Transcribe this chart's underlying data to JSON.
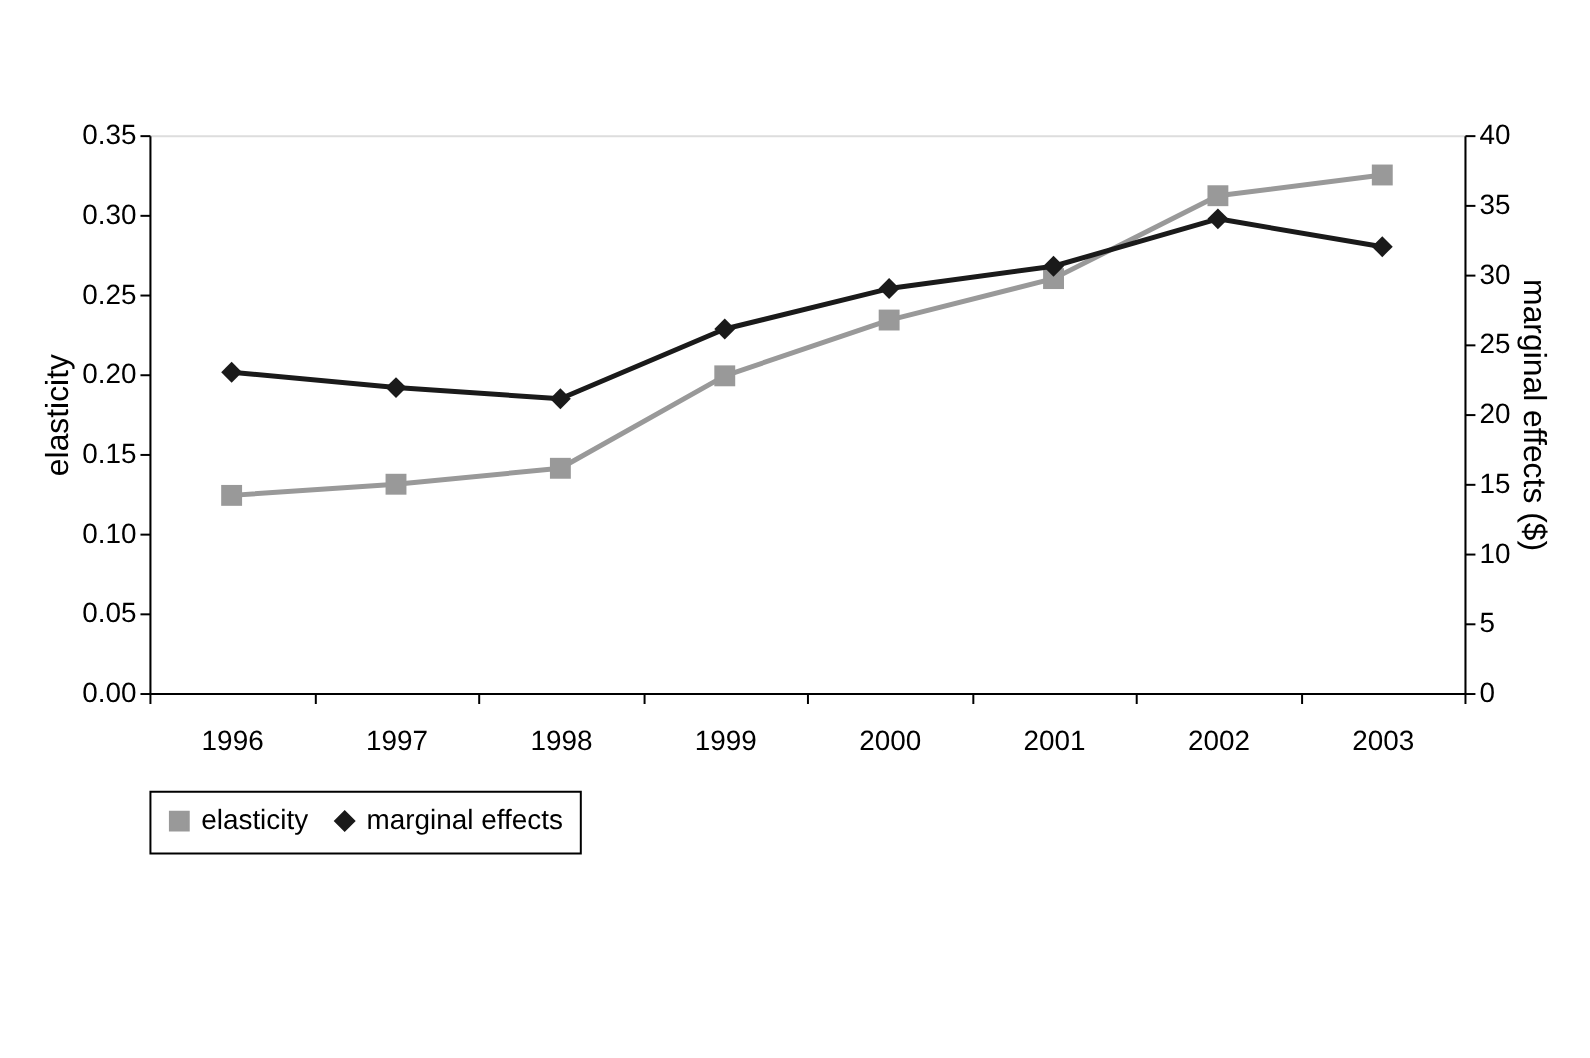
{
  "chart_data": {
    "type": "line",
    "ylabel": "elasticity",
    "y2label": "marginal effects ($)",
    "categories": [
      "1996",
      "1997",
      "1998",
      "1999",
      "2000",
      "2001",
      "2002",
      "2003"
    ],
    "series": [
      {
        "name": "elasticity",
        "color": "#999999",
        "marker": "square",
        "values": [
          0.124,
          0.131,
          0.141,
          0.199,
          0.234,
          0.26,
          0.312,
          0.325
        ]
      },
      {
        "name": "marginal effects",
        "color": "#1a1a1a",
        "marker": "diamond",
        "axis": "y2",
        "values": [
          23.0,
          21.9,
          21.1,
          26.1,
          29.0,
          30.6,
          34.0,
          32.0
        ]
      }
    ],
    "ylim": [
      0,
      0.35
    ],
    "yticks": [
      {
        "value": 0,
        "label": "0.00"
      },
      0.05,
      {
        "value": 0.1,
        "label": "0.10"
      },
      0.15,
      {
        "value": 0.2,
        "label": "0.20"
      },
      0.25,
      {
        "value": 0.3,
        "label": "0.30"
      },
      0.35
    ],
    "y2lim": [
      0,
      40
    ],
    "y2ticks": [
      0,
      5,
      10,
      15,
      20,
      25,
      30,
      35,
      40
    ],
    "grid": false,
    "legend": "bottom",
    "line_style": "solid"
  }
}
